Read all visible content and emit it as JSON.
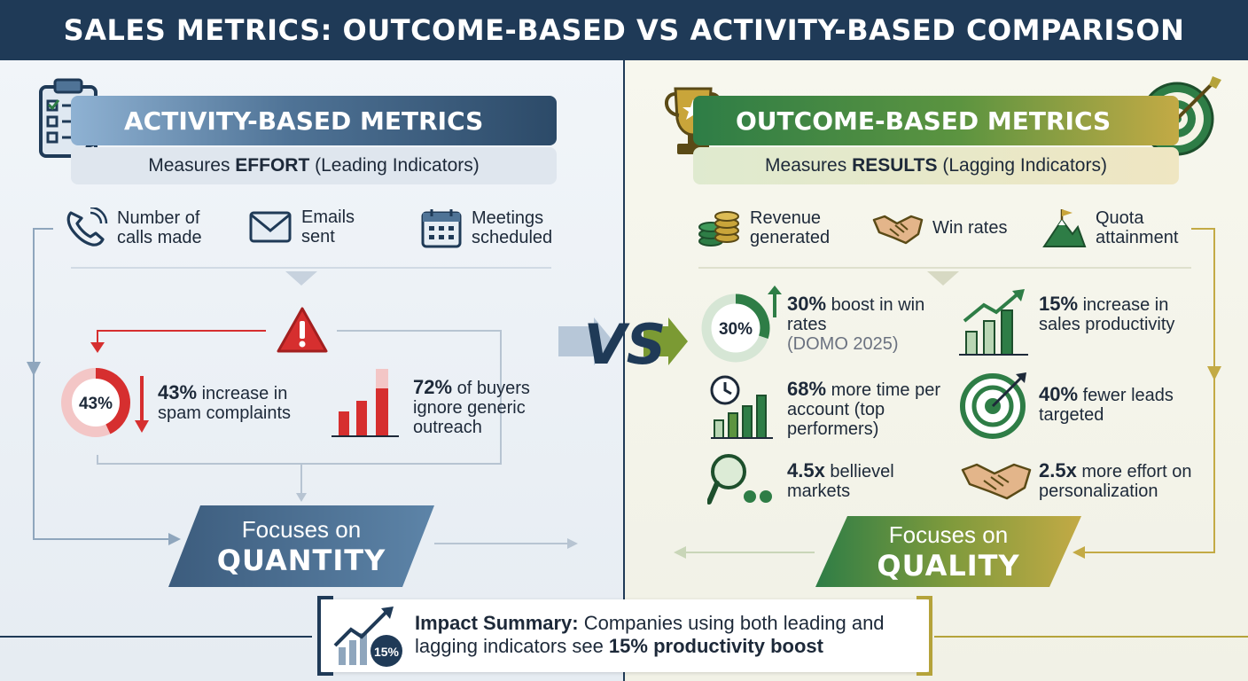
{
  "header": {
    "title": "SALES METRICS: OUTCOME-BASED VS ACTIVITY-BASED COMPARISON"
  },
  "colors": {
    "navy": "#1f3a57",
    "steel": "#4f7396",
    "green": "#2e7d46",
    "gold": "#b5a33a",
    "red": "#d62f2f"
  },
  "activity": {
    "title": "ACTIVITY-BASED METRICS",
    "sub_prefix": "Measures ",
    "sub_bold": "EFFORT",
    "sub_suffix": " (Leading Indicators)",
    "items": [
      {
        "icon": "phone-icon",
        "label": "Number of\ncalls made"
      },
      {
        "icon": "email-icon",
        "label": "Emails\nsent"
      },
      {
        "icon": "calendar-icon",
        "label": "Meetings\nscheduled"
      }
    ],
    "stat1": {
      "ring_label": "43%",
      "ring_value": 0.43,
      "bold": "43%",
      "rest": " increase in spam complaints"
    },
    "stat2": {
      "bold": "72%",
      "rest": " of buyers ignore generic outreach"
    },
    "focus": {
      "line1": "Focuses on",
      "line2": "QUANTITY"
    }
  },
  "outcome": {
    "title": "OUTCOME-BASED METRICS",
    "sub_prefix": "Measures ",
    "sub_bold": "RESULTS",
    "sub_suffix": " (Lagging Indicators)",
    "items": [
      {
        "icon": "coins-icon",
        "label": "Revenue\ngenerated"
      },
      {
        "icon": "handshake-icon",
        "label": "Win rates"
      },
      {
        "icon": "mountain-flag-icon",
        "label": "Quota\nattainment"
      }
    ],
    "stats": [
      {
        "icon": "ring-30-icon",
        "ring_label": "30%",
        "ring_value": 0.3,
        "bold": "30%",
        "rest": " boost in win rates",
        "source": "(DOMO 2025)"
      },
      {
        "icon": "growth-bars-icon",
        "bold": "15%",
        "rest": " increase in sales productivity"
      },
      {
        "icon": "clock-bars-icon",
        "bold": "68%",
        "rest": " more time per account (top performers)"
      },
      {
        "icon": "target-icon",
        "bold": "40%",
        "rest": " fewer leads targeted"
      },
      {
        "icon": "magnifier-icon",
        "bold": "4.5x",
        "rest": " bellievel markets"
      },
      {
        "icon": "handshake-icon",
        "bold": "2.5x",
        "rest": " more effort on personalization"
      }
    ],
    "focus": {
      "line1": "Focuses on",
      "line2": "QUALITY"
    }
  },
  "vs": "VS",
  "summary": {
    "badge": "15%",
    "bold1": "Impact Summary:",
    "text1": " Companies using both leading and lagging indicators see ",
    "bold2": "15% productivity boost"
  }
}
